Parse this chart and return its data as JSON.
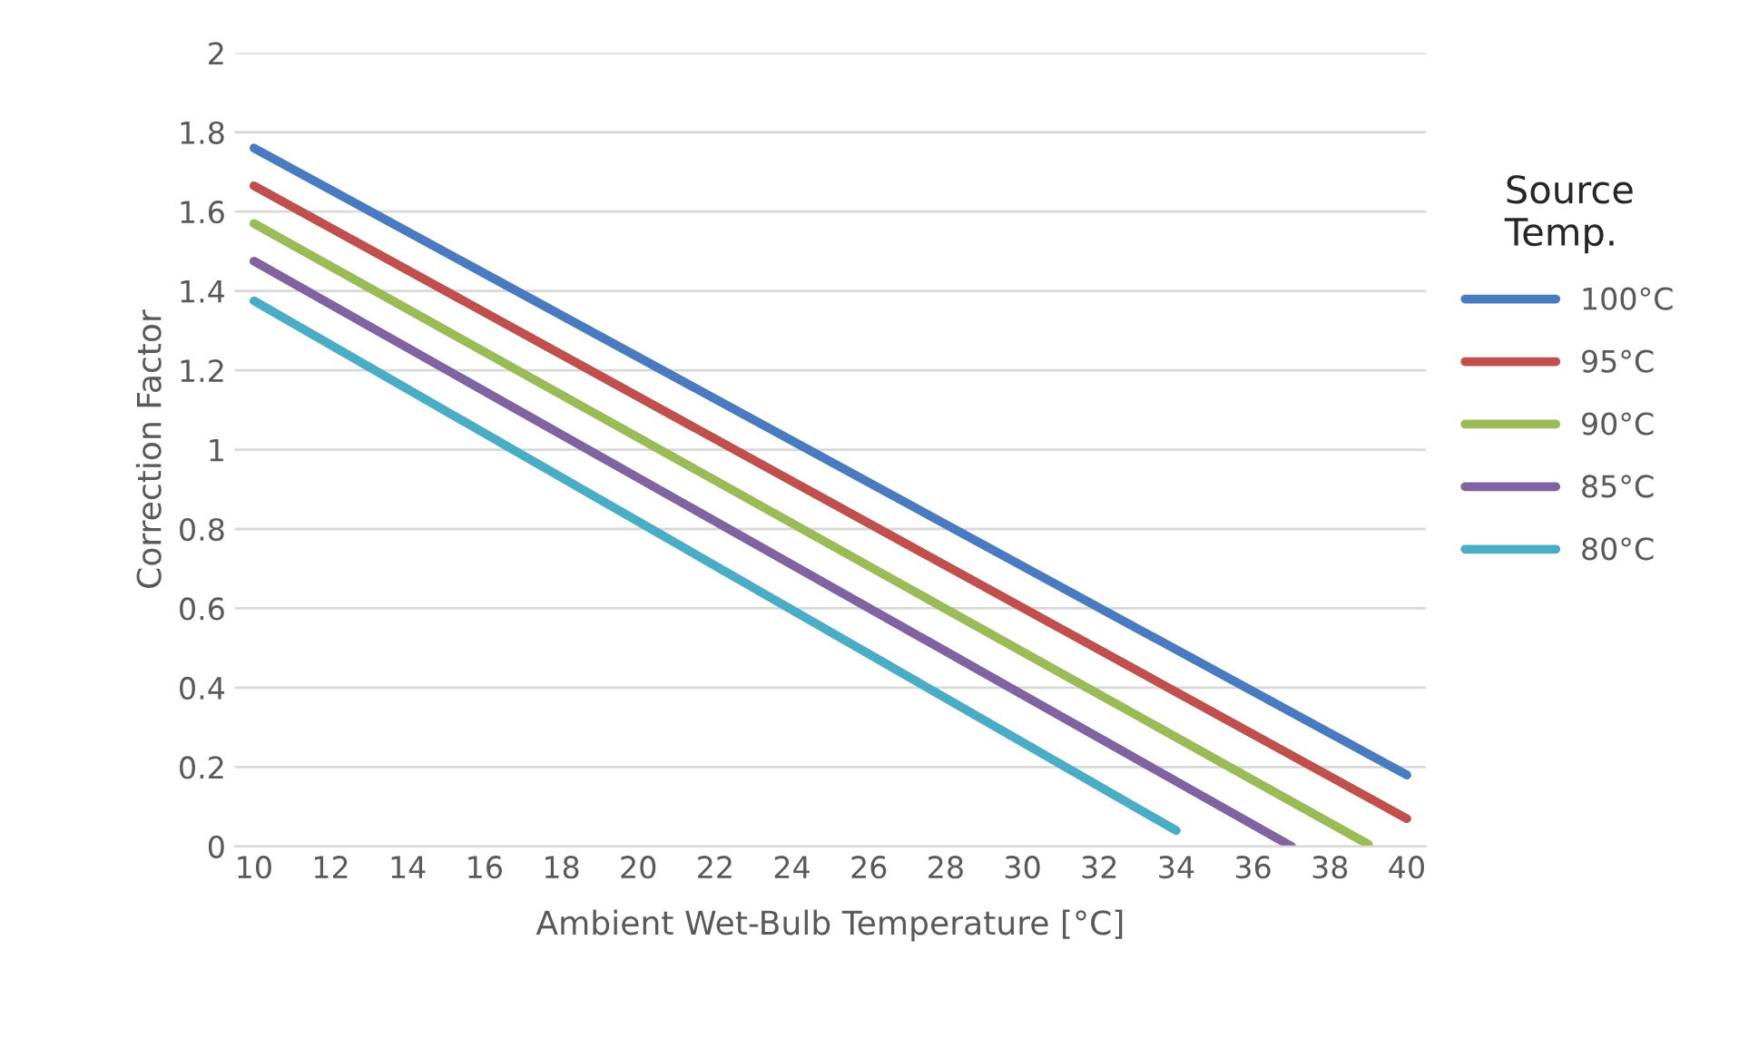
{
  "chart_data": {
    "type": "line",
    "xlabel": "Ambient Wet-Bulb Temperature [°C]",
    "ylabel": "Correction Factor",
    "legend_title": "Source\nTemp.",
    "legend": "right",
    "grid": "y",
    "marker": "none",
    "line_style": "solid",
    "xlim": [
      9.5,
      40.5
    ],
    "xticks": [
      10,
      12,
      14,
      16,
      18,
      20,
      22,
      24,
      26,
      28,
      30,
      32,
      34,
      36,
      38,
      40
    ],
    "ylim": [
      0,
      2
    ],
    "yticks": [
      0,
      0.2,
      0.4,
      0.6,
      0.8,
      1,
      1.2,
      1.4,
      1.6,
      1.8,
      2
    ],
    "series": [
      {
        "name": "100°C",
        "color": "#4a7bc0",
        "x": [
          10,
          40
        ],
        "values": [
          1.76,
          0.18
        ]
      },
      {
        "name": "95°C",
        "color": "#c0504d",
        "x": [
          10,
          40
        ],
        "values": [
          1.665,
          0.07
        ]
      },
      {
        "name": "90°C",
        "color": "#9bbb59",
        "x": [
          10,
          39
        ],
        "values": [
          1.57,
          0.005
        ]
      },
      {
        "name": "85°C",
        "color": "#8064a2",
        "x": [
          10,
          37
        ],
        "values": [
          1.475,
          0
        ]
      },
      {
        "name": "80°C",
        "color": "#4bacc6",
        "x": [
          10,
          34
        ],
        "values": [
          1.375,
          0.04
        ]
      }
    ]
  }
}
